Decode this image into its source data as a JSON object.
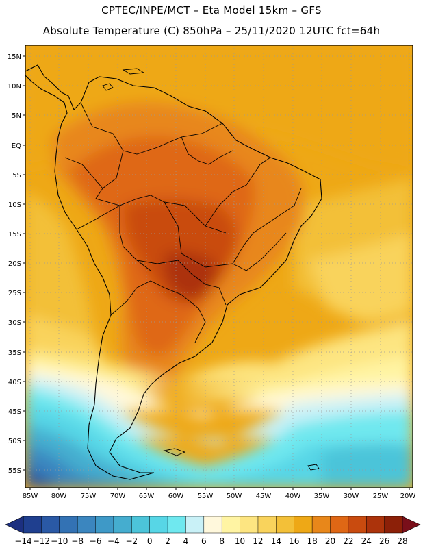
{
  "header": {
    "line1": "CPTEC/INPE/MCT –   Eta Model 15km – GFS",
    "line2": "Absolute Temperature (C) 850hPa – 25/11/2020 12UTC fct=64h"
  },
  "map": {
    "lat_labels": [
      "15N",
      "10N",
      "5N",
      "EQ",
      "5S",
      "10S",
      "15S",
      "20S",
      "25S",
      "30S",
      "35S",
      "40S",
      "45S",
      "50S",
      "55S"
    ],
    "lon_labels": [
      "85W",
      "80W",
      "75W",
      "70W",
      "65W",
      "60W",
      "55W",
      "50W",
      "45W",
      "40W",
      "35W",
      "30W",
      "25W",
      "20W"
    ]
  },
  "colorbar": {
    "labels": [
      "-14",
      "-12",
      "-10",
      "-8",
      "-6",
      "-4",
      "-2",
      "0",
      "2",
      "4",
      "6",
      "8",
      "10",
      "12",
      "14",
      "16",
      "18",
      "20",
      "22",
      "24",
      "26",
      "28"
    ],
    "colors": [
      "#1f3f8f",
      "#2a59a5",
      "#3372b4",
      "#3b86bf",
      "#3e99c7",
      "#45adcf",
      "#4cc4d9",
      "#57d6e6",
      "#6fe8ef",
      "#c9f1f7",
      "#fff8dc",
      "#fff4a3",
      "#fde581",
      "#f9d35c",
      "#f3c038",
      "#eea816",
      "#e8871a",
      "#df6715",
      "#c94b0f",
      "#ac330b",
      "#8c2008"
    ],
    "low_color": "#1c2f80",
    "high_color": "#7a0f1a"
  }
}
